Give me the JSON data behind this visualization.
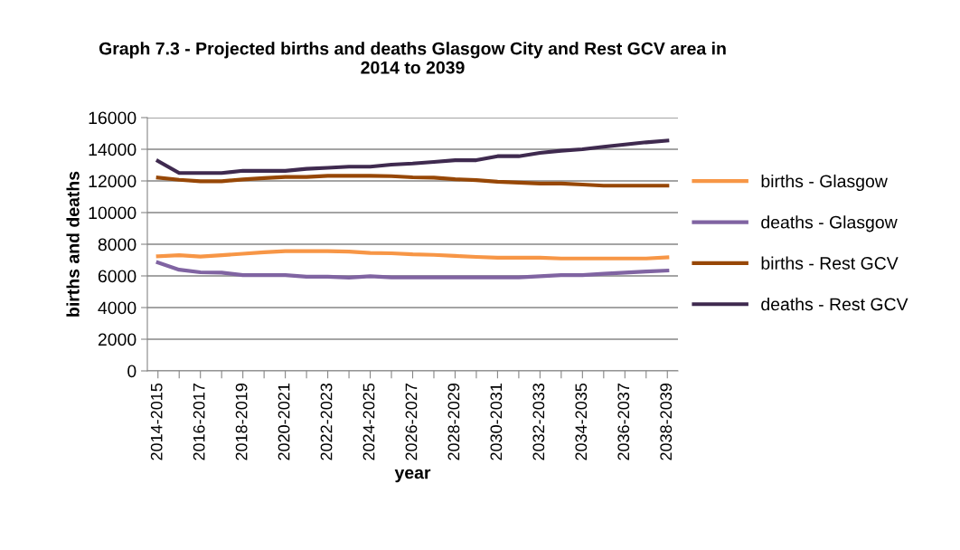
{
  "chart_data": {
    "type": "line",
    "title": "Graph 7.3 - Projected births and deaths Glasgow City and Rest GCV area in\n2014 to 2039",
    "xlabel": "year",
    "ylabel": "births and deaths",
    "categories": [
      "2014-2015",
      null,
      "2016-2017",
      null,
      "2018-2019",
      null,
      "2020-2021",
      null,
      "2022-2023",
      null,
      "2024-2025",
      null,
      "2026-2027",
      null,
      "2028-2029",
      null,
      "2030-2031",
      null,
      "2032-2033",
      null,
      "2034-2035",
      null,
      "2036-2037",
      null,
      "2038-2039"
    ],
    "series": [
      {
        "name": "births - Glasgow",
        "color": "#f79646",
        "values": [
          7240,
          7310,
          7220,
          7310,
          7400,
          7490,
          7560,
          7560,
          7560,
          7540,
          7450,
          7430,
          7360,
          7330,
          7260,
          7200,
          7150,
          7150,
          7150,
          7100,
          7100,
          7100,
          7100,
          7100,
          7170
        ]
      },
      {
        "name": "deaths - Glasgow",
        "color": "#8064a2",
        "values": [
          6850,
          6390,
          6230,
          6210,
          6050,
          6050,
          6050,
          5950,
          5950,
          5890,
          5980,
          5910,
          5910,
          5910,
          5910,
          5910,
          5910,
          5910,
          5980,
          6050,
          6050,
          6140,
          6210,
          6280,
          6340
        ]
      },
      {
        "name": "births - Rest GCV",
        "color": "#974706",
        "values": [
          12210,
          12070,
          11980,
          11980,
          12090,
          12180,
          12250,
          12250,
          12320,
          12320,
          12320,
          12300,
          12230,
          12210,
          12110,
          12050,
          11950,
          11890,
          11840,
          11840,
          11770,
          11700,
          11700,
          11700,
          11700
        ]
      },
      {
        "name": "deaths - Rest GCV",
        "color": "#3f2a4f",
        "values": [
          13260,
          12500,
          12500,
          12500,
          12640,
          12640,
          12640,
          12760,
          12830,
          12900,
          12900,
          13030,
          13100,
          13200,
          13310,
          13310,
          13560,
          13560,
          13770,
          13910,
          14000,
          14160,
          14300,
          14440,
          14550
        ]
      }
    ],
    "ylim": [
      0,
      16000
    ],
    "yticks": [
      0,
      2000,
      4000,
      6000,
      8000,
      10000,
      12000,
      14000,
      16000
    ],
    "grid": "y",
    "legend": "right",
    "marker": "none",
    "line_style": "solid"
  }
}
